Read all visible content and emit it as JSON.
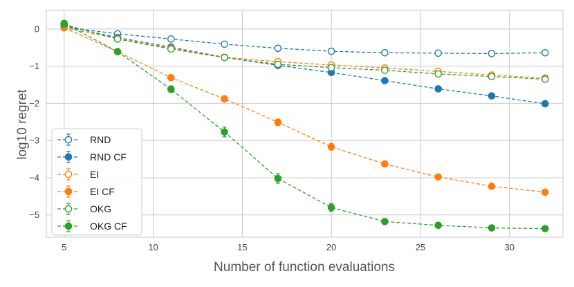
{
  "chart_data": {
    "type": "line",
    "title": "",
    "xlabel": "Number of function evaluations",
    "ylabel": "log10 regret",
    "xlim": [
      4.0,
      33.0
    ],
    "ylim": [
      -5.6,
      0.5
    ],
    "xticks": [
      5,
      10,
      15,
      20,
      25,
      30
    ],
    "yticks": [
      0,
      -1,
      -2,
      -3,
      -4,
      -5
    ],
    "xtick_labels": [
      "5",
      "10",
      "15",
      "20",
      "25",
      "30"
    ],
    "ytick_labels": [
      "0",
      "−1",
      "−2",
      "−3",
      "−4",
      "−5"
    ],
    "grid": true,
    "legend_position": "lower-left",
    "x": [
      5,
      8,
      11,
      14,
      17,
      20,
      23,
      26,
      29,
      32
    ],
    "series": [
      {
        "name": "RND",
        "color": "#1f77b4",
        "marker": "open",
        "values": [
          0.05,
          -0.13,
          -0.27,
          -0.41,
          -0.52,
          -0.6,
          -0.64,
          -0.65,
          -0.66,
          -0.64
        ],
        "errors": [
          0.02,
          0.02,
          0.03,
          0.03,
          0.03,
          0.03,
          0.03,
          0.03,
          0.03,
          0.03
        ]
      },
      {
        "name": "RND CF",
        "color": "#1f77b4",
        "marker": "filled",
        "values": [
          0.08,
          -0.23,
          -0.49,
          -0.76,
          -0.98,
          -1.17,
          -1.39,
          -1.61,
          -1.8,
          -2.01
        ],
        "errors": [
          0.02,
          0.03,
          0.03,
          0.03,
          0.03,
          0.04,
          0.04,
          0.03,
          0.03,
          0.03
        ]
      },
      {
        "name": "EI",
        "color": "#ff7f0e",
        "marker": "open",
        "values": [
          0.03,
          -0.26,
          -0.52,
          -0.76,
          -0.88,
          -0.97,
          -1.05,
          -1.14,
          -1.24,
          -1.32
        ],
        "errors": [
          0.02,
          0.03,
          0.03,
          0.03,
          0.03,
          0.03,
          0.03,
          0.03,
          0.03,
          0.03
        ]
      },
      {
        "name": "EI CF",
        "color": "#ff7f0e",
        "marker": "filled",
        "values": [
          0.03,
          -0.61,
          -1.31,
          -1.88,
          -2.51,
          -3.17,
          -3.63,
          -3.98,
          -4.23,
          -4.39
        ],
        "errors": [
          0.03,
          0.05,
          0.06,
          0.08,
          0.09,
          0.09,
          0.08,
          0.06,
          0.05,
          0.05
        ]
      },
      {
        "name": "OKG",
        "color": "#2ca02c",
        "marker": "open",
        "values": [
          0.12,
          -0.27,
          -0.54,
          -0.77,
          -0.95,
          -1.04,
          -1.11,
          -1.21,
          -1.28,
          -1.35
        ],
        "errors": [
          0.02,
          0.03,
          0.03,
          0.03,
          0.03,
          0.03,
          0.03,
          0.03,
          0.03,
          0.03
        ]
      },
      {
        "name": "OKG CF",
        "color": "#2ca02c",
        "marker": "filled",
        "values": [
          0.15,
          -0.61,
          -1.62,
          -2.77,
          -4.02,
          -4.8,
          -5.18,
          -5.28,
          -5.35,
          -5.37
        ],
        "errors": [
          0.03,
          0.05,
          0.09,
          0.13,
          0.13,
          0.1,
          0.08,
          0.06,
          0.07,
          0.06
        ]
      }
    ]
  }
}
